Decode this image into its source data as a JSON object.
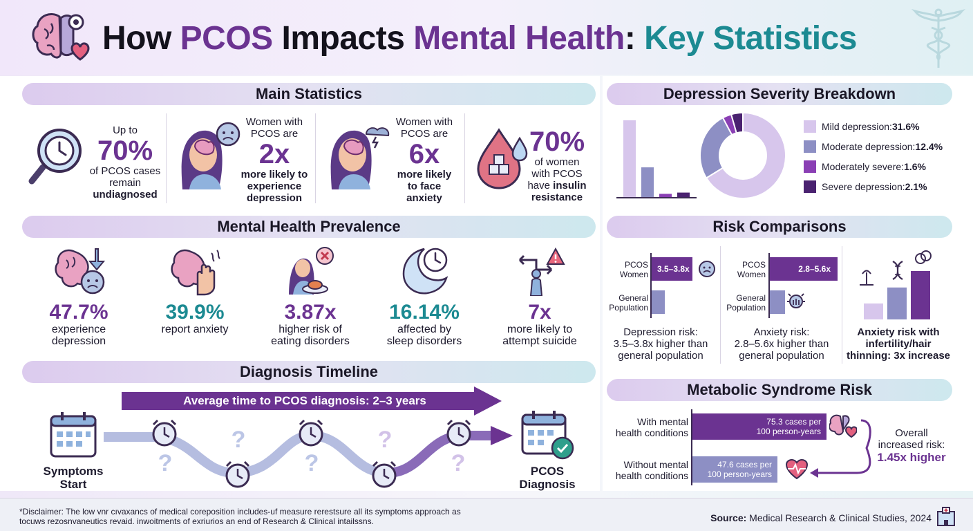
{
  "header": {
    "title_part1": "How ",
    "title_part2": "PCOS",
    "title_part3": " Impacts ",
    "title_part4": "Mental Health",
    "title_part5": ": ",
    "title_part6": "Key Statistics"
  },
  "main_stats": {
    "heading": "Main Statistics",
    "items": [
      {
        "pre": "Up to",
        "value": "70%",
        "line1": "of PCOS cases",
        "line2": "remain",
        "line3": "undiagnosed"
      },
      {
        "pre1": "Women with",
        "pre2": "PCOS are",
        "value": "2x",
        "line1": "more likely to",
        "line2": "experience",
        "line3": "depression"
      },
      {
        "pre1": "Women with",
        "pre2": "PCOS are",
        "value": "6x",
        "line1": "more likely",
        "line2": "to face",
        "line3": "anxiety"
      },
      {
        "value": "70%",
        "line1": "of women",
        "line2": "with PCOS",
        "line3a": "have ",
        "line3b": "insulin",
        "line4": "resistance"
      }
    ]
  },
  "depression": {
    "heading": "Depression Severity Breakdown",
    "legend": [
      {
        "label": "Mild depression: ",
        "value": "31.6%",
        "color": "#d7c6ec"
      },
      {
        "label": "Moderate depression: ",
        "value": "12.4%",
        "color": "#8d8fc4"
      },
      {
        "label": "Moderately severe: ",
        "value": "1.6%",
        "color": "#8a3fb4"
      },
      {
        "label": "Severe depression: ",
        "value": "2.1%",
        "color": "#4a2270"
      }
    ]
  },
  "chart_data": {
    "type": "bar",
    "categories": [
      "Mild depression",
      "Moderate depression",
      "Moderately severe",
      "Severe depression"
    ],
    "values": [
      31.6,
      12.4,
      1.6,
      2.1
    ],
    "colors": [
      "#d7c6ec",
      "#8d8fc4",
      "#8a3fb4",
      "#4a2270"
    ]
  },
  "prevalence": {
    "heading": "Mental Health Prevalence",
    "items": [
      {
        "value": "47.7%",
        "line1": "experience",
        "line2": "depression",
        "color": "#6b3391"
      },
      {
        "value": "39.9%",
        "line1": "report anxiety",
        "line2": "",
        "color": "#1c8a92"
      },
      {
        "value": "3.87x",
        "line1": "higher risk of",
        "line2": "eating disorders",
        "color": "#6b3391"
      },
      {
        "value": "16.14%",
        "line1": "affected by",
        "line2": "sleep disorders",
        "color": "#1c8a92"
      },
      {
        "value": "7x",
        "line1": "more likely to",
        "line2": "attempt suicide",
        "color": "#6b3391"
      }
    ]
  },
  "risk": {
    "heading": "Risk Comparisons",
    "dep": {
      "label1a": "PCOS",
      "label1b": "Women",
      "bar_text": "3.5–3.8x",
      "label2a": "General",
      "label2b": "Population",
      "cap1": "Depression risk:",
      "cap2": "3.5–3.8x higher than",
      "cap3": "general population",
      "pcos_fraction": 0.9,
      "general_fraction": 0.25
    },
    "anx": {
      "label1a": "PCOS",
      "label1b": "Women",
      "bar_text": "2.8–5.6x",
      "label2a": "General",
      "label2b": "Population",
      "cap1": "Anxiety risk:",
      "cap2": "2.8–5.6x higher than",
      "cap3": "general population",
      "pcos_fraction": 1.0,
      "general_fraction": 0.22
    },
    "infert": {
      "cap1": "Anxiety risk with",
      "cap2": "infertility/hair",
      "cap3": "thinning: 3x increase",
      "levels": [
        0.33,
        0.66,
        1.0
      ]
    }
  },
  "timeline": {
    "heading": "Diagnosis Timeline",
    "banner": "Average time to PCOS diagnosis: 2–3 years",
    "start1": "Symptoms",
    "start2": "Start",
    "end1": "PCOS",
    "end2": "Diagnosis",
    "q": "?"
  },
  "metabolic": {
    "heading": "Metabolic Syndrome Risk",
    "row1a": "With mental",
    "row1b": "health conditions",
    "bar1a": "75.3 cases per",
    "bar1b": "100 person-years",
    "row2a": "Without mental",
    "row2b": "health conditions",
    "bar2a": "47.6 cases per",
    "bar2b": "100 person-years",
    "overall1": "Overall",
    "overall2": "increased risk:",
    "overall3": "1.45x higher",
    "with_value": 75.3,
    "without_value": 47.6
  },
  "footer": {
    "disclaimer1": "*Disclaimer: The low",
    "disclaimer1b": "vnr cıvaxancs of medical coreposition includes-uf measure rerestsure all its symptoms approach as",
    "disclaimer2": "tocuws rezosnvaneutics revaid. inwoitments of exriurios an end of Research & Clinical intailssns.",
    "source_label": "Source:",
    "source_text": " Medical Research & Clinical Studies, 2024"
  }
}
